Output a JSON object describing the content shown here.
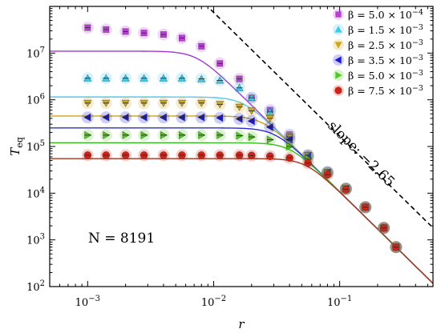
{
  "chart_data": {
    "type": "scatter",
    "xlabel": "r",
    "ylabel": "T",
    "ylabel_sub": "eq",
    "xscale": "log",
    "yscale": "log",
    "xlim": [
      0.0005,
      0.55
    ],
    "ylim": [
      100,
      100000000
    ],
    "x_tick_labels": [
      {
        "value": 0.001,
        "base": "10",
        "exp": "−3"
      },
      {
        "value": 0.01,
        "base": "10",
        "exp": "−2"
      },
      {
        "value": 0.1,
        "base": "10",
        "exp": "−1"
      }
    ],
    "y_tick_labels": [
      {
        "value": 100,
        "base": "10",
        "exp": "2"
      },
      {
        "value": 1000,
        "base": "10",
        "exp": "3"
      },
      {
        "value": 10000,
        "base": "10",
        "exp": "4"
      },
      {
        "value": 100000,
        "base": "10",
        "exp": "5"
      },
      {
        "value": 1000000,
        "base": "10",
        "exp": "6"
      },
      {
        "value": 10000000,
        "base": "10",
        "exp": "7"
      }
    ],
    "legend_position": "top-right",
    "annotations": {
      "n_label": "N = 8191",
      "slope_label": "slope: −2.65",
      "slope_value": -2.65
    },
    "x": [
      0.001,
      0.0014,
      0.002,
      0.0028,
      0.004,
      0.0056,
      0.008,
      0.0112,
      0.016,
      0.02,
      0.028,
      0.04,
      0.056,
      0.08,
      0.112,
      0.16,
      0.224,
      0.28
    ],
    "series": [
      {
        "name": "β = 5.0 × 10⁻⁴",
        "legend_prefix": "β = 5.0 × 10",
        "legend_exp": "−4",
        "marker": "square",
        "color": "#b93fd6",
        "line_color": "#a236d8",
        "plateau": 11000000,
        "values": [
          35000000,
          32000000,
          29000000,
          27000000,
          25000000,
          21000000,
          14000000,
          6000000,
          2800000,
          1100000,
          600000,
          180000,
          65000,
          28000,
          12500,
          5000,
          1800,
          700
        ]
      },
      {
        "name": "β = 1.5 × 10⁻³",
        "legend_prefix": "β = 1.5 × 10",
        "legend_exp": "−3",
        "marker": "triangle-up",
        "color": "#3ec8ea",
        "line_color": "#55c8ec",
        "plateau": 1150000,
        "values": [
          2900000,
          2900000,
          2900000,
          2900000,
          2900000,
          2900000,
          2800000,
          2600000,
          1800000,
          1100000,
          550000,
          170000,
          65000,
          28000,
          12500,
          5000,
          1800,
          700
        ]
      },
      {
        "name": "β = 2.5 × 10⁻³",
        "legend_prefix": "β = 2.5 × 10",
        "legend_exp": "−3",
        "marker": "triangle-down",
        "color": "#cfa71c",
        "line_color": "#caa023",
        "plateau": 450000,
        "values": [
          850000,
          850000,
          850000,
          850000,
          850000,
          850000,
          850000,
          800000,
          700000,
          580000,
          400000,
          160000,
          65000,
          28000,
          12500,
          5000,
          1800,
          700
        ]
      },
      {
        "name": "β = 3.5 × 10⁻³",
        "legend_prefix": "β = 3.5 × 10",
        "legend_exp": "−3",
        "marker": "triangle-left",
        "color": "#1c1ad1",
        "line_color": "#2b2bd8",
        "plateau": 250000,
        "values": [
          420000,
          420000,
          420000,
          420000,
          420000,
          420000,
          420000,
          410000,
          390000,
          350000,
          260000,
          140000,
          62000,
          28000,
          12500,
          5000,
          1800,
          700
        ]
      },
      {
        "name": "β = 5.0 × 10⁻³",
        "legend_prefix": "β = 5.0 × 10",
        "legend_exp": "−3",
        "marker": "triangle-right",
        "color": "#50c91c",
        "line_color": "#3aba23",
        "plateau": 120000,
        "values": [
          175000,
          175000,
          175000,
          175000,
          175000,
          175000,
          175000,
          175000,
          170000,
          160000,
          140000,
          100000,
          55000,
          27000,
          12500,
          5000,
          1800,
          700
        ]
      },
      {
        "name": "β = 7.5 × 10⁻³",
        "legend_prefix": "β = 7.5 × 10",
        "legend_exp": "−3",
        "marker": "circle",
        "color": "#cc2418",
        "line_color": "#a33520",
        "plateau": 55000,
        "values": [
          65000,
          65000,
          65000,
          65000,
          65000,
          65000,
          65000,
          65000,
          65000,
          64000,
          62000,
          57000,
          44000,
          25000,
          12000,
          5000,
          1800,
          700
        ]
      }
    ]
  }
}
